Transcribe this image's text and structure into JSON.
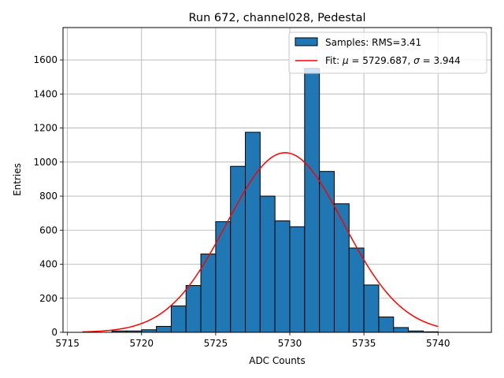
{
  "chart_data": {
    "type": "bar",
    "title": "Run 672, channel028, Pedestal",
    "xlabel": "ADC Counts",
    "ylabel": "Entries",
    "xlim": [
      5714.7,
      5743.6
    ],
    "ylim": [
      0,
      1790
    ],
    "xticks": [
      5715,
      5720,
      5725,
      5730,
      5735,
      5740
    ],
    "yticks": [
      0,
      200,
      400,
      600,
      800,
      1000,
      1200,
      1400,
      1600
    ],
    "grid": true,
    "legend_position": "top-right",
    "histogram": {
      "label": "Samples: RMS=3.41",
      "color": "#1f77b4",
      "edgecolor": "#000000",
      "bin_width": 1,
      "bins": [
        {
          "left": 5718,
          "count": 8
        },
        {
          "left": 5719,
          "count": 8
        },
        {
          "left": 5720,
          "count": 15
        },
        {
          "left": 5721,
          "count": 35
        },
        {
          "left": 5722,
          "count": 155
        },
        {
          "left": 5723,
          "count": 275
        },
        {
          "left": 5724,
          "count": 460
        },
        {
          "left": 5725,
          "count": 650
        },
        {
          "left": 5726,
          "count": 975
        },
        {
          "left": 5727,
          "count": 1175
        },
        {
          "left": 5728,
          "count": 800
        },
        {
          "left": 5729,
          "count": 655
        },
        {
          "left": 5730,
          "count": 620
        },
        {
          "left": 5731,
          "count": 1550
        },
        {
          "left": 5732,
          "count": 945
        },
        {
          "left": 5733,
          "count": 755
        },
        {
          "left": 5734,
          "count": 495
        },
        {
          "left": 5735,
          "count": 278
        },
        {
          "left": 5736,
          "count": 90
        },
        {
          "left": 5737,
          "count": 28
        },
        {
          "left": 5738,
          "count": 8
        },
        {
          "left": 5739,
          "count": 3
        }
      ]
    },
    "fit": {
      "label_prefix": "Fit: ",
      "label_mu": "μ",
      "label_mu_value": " = 5729.687, ",
      "label_sigma": "σ",
      "label_sigma_value": " = 3.944",
      "color": "#ff0000",
      "mu": 5729.687,
      "sigma": 3.944,
      "amplitude": 1055,
      "x_range": [
        5716,
        5740
      ]
    }
  }
}
